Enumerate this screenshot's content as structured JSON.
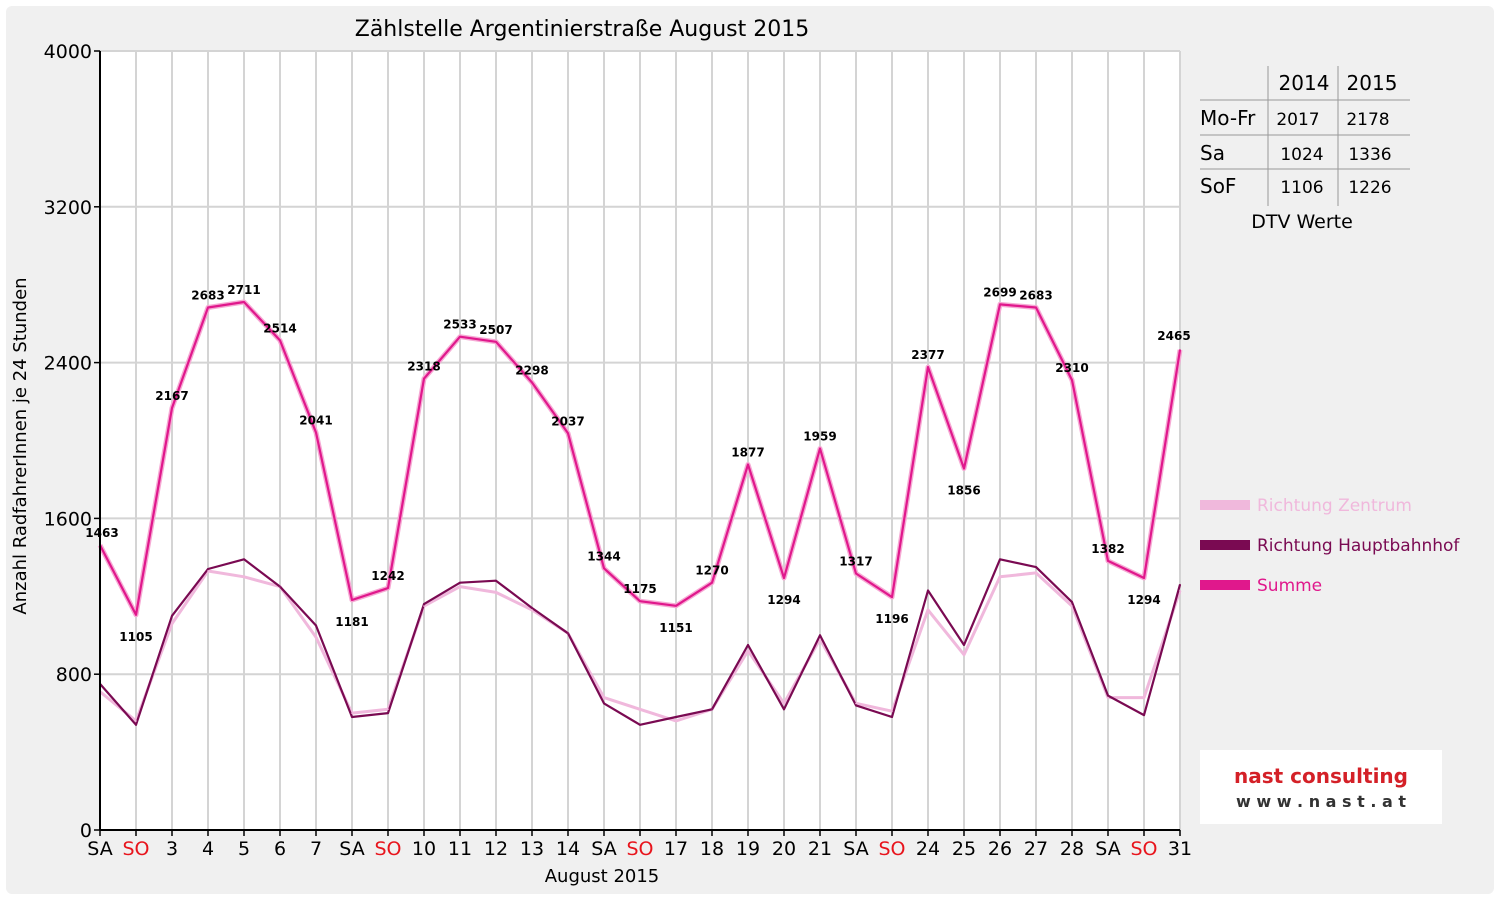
{
  "chart_data": {
    "type": "line",
    "title": "Zählstelle Argentinierstraße August 2015",
    "xlabel": "August 2015",
    "ylabel": "Anzahl RadfahrerInnen je 24 Stunden",
    "ylim": [
      0,
      4000
    ],
    "yticks": [
      0,
      800,
      1600,
      2400,
      3200,
      4000
    ],
    "grid": true,
    "legend_position": "right",
    "categories": [
      "SA",
      "SO",
      "3",
      "4",
      "5",
      "6",
      "7",
      "SA",
      "SO",
      "10",
      "11",
      "12",
      "13",
      "14",
      "SA",
      "SO",
      "17",
      "18",
      "19",
      "20",
      "21",
      "SA",
      "SO",
      "24",
      "25",
      "26",
      "27",
      "28",
      "SA",
      "SO",
      "31"
    ],
    "weekend_label_color": "#e8141c",
    "series": [
      {
        "name": "Richtung Zentrum",
        "color": "#f0b8dc",
        "values": [
          710,
          560,
          1060,
          1330,
          1300,
          1250,
          990,
          600,
          620,
          1150,
          1250,
          1220,
          1130,
          1010,
          680,
          620,
          560,
          620,
          920,
          650,
          980,
          650,
          610,
          1130,
          900,
          1300,
          1320,
          1150,
          680,
          680,
          1230
        ]
      },
      {
        "name": "Richtung Hauptbahnhof",
        "color": "#7a0a52",
        "values": [
          750,
          540,
          1100,
          1340,
          1390,
          1250,
          1050,
          580,
          600,
          1160,
          1270,
          1280,
          1140,
          1010,
          650,
          540,
          580,
          620,
          950,
          620,
          1000,
          640,
          580,
          1230,
          950,
          1390,
          1350,
          1170,
          690,
          590,
          1260
        ]
      },
      {
        "name": "Summe",
        "color": "#e0188c",
        "values": [
          1463,
          1105,
          2167,
          2683,
          2711,
          2514,
          2041,
          1181,
          1242,
          2318,
          2533,
          2507,
          2298,
          2037,
          1344,
          1175,
          1151,
          1270,
          1877,
          1294,
          1959,
          1317,
          1196,
          2377,
          1856,
          2699,
          2683,
          2310,
          1382,
          1294,
          2465
        ]
      }
    ],
    "data_labels": [
      "1463",
      "1105",
      "2167",
      "2683",
      "2711",
      "2514",
      "2041",
      "1181",
      "1242",
      "2318",
      "2533",
      "2507",
      "2298",
      "2037",
      "1344",
      "1175",
      "1151",
      "1270",
      "1877",
      "1294",
      "1959",
      "1317",
      "1196",
      "2377",
      "1856",
      "2699",
      "2683",
      "2310",
      "1382",
      "1294",
      "2465"
    ]
  },
  "dtv_table": {
    "headers": [
      "",
      "2014",
      "2015"
    ],
    "rows": [
      [
        "Mo-Fr",
        "2017",
        "2178"
      ],
      [
        "Sa",
        "1024",
        "1336"
      ],
      [
        "SoF",
        "1106",
        "1226"
      ]
    ],
    "caption": "DTV Werte"
  },
  "logo": {
    "name": "nast consulting",
    "url_text": "w w w . n a s t . a t",
    "name_color": "#d42027",
    "url_color": "#333333"
  }
}
